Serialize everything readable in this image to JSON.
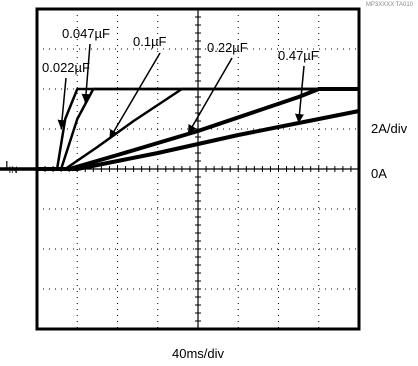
{
  "chart_data": {
    "type": "line",
    "figure_id": "MP3XXXX TA010",
    "xlabel": "40ms/div",
    "ylabel": "IN",
    "ylabel_main": "I",
    "ylabel_sub": "IN",
    "y_scale_label": "2A/div",
    "zero_label": "0A",
    "x_divisions": 8,
    "y_divisions": 8,
    "xlim": [
      0,
      320
    ],
    "ylim": [
      -8,
      8
    ],
    "x_unit": "ms",
    "y_unit": "A",
    "grid": true,
    "series": [
      {
        "name": "0.022µF",
        "points": [
          [
            0,
            0
          ],
          [
            20,
            0
          ],
          [
            28,
            2.5
          ],
          [
            40,
            4
          ],
          [
            80,
            4
          ],
          [
            200,
            4
          ],
          [
            320,
            4
          ]
        ]
      },
      {
        "name": "0.047µF",
        "points": [
          [
            0,
            0
          ],
          [
            24,
            0
          ],
          [
            40,
            2.5
          ],
          [
            56,
            4
          ],
          [
            160,
            4
          ],
          [
            320,
            4
          ]
        ]
      },
      {
        "name": "0.1µF",
        "points": [
          [
            0,
            0
          ],
          [
            28,
            0
          ],
          [
            60,
            1.1
          ],
          [
            96,
            2.4
          ],
          [
            144,
            4
          ],
          [
            320,
            4
          ]
        ]
      },
      {
        "name": "0.22µF",
        "points": [
          [
            0,
            0
          ],
          [
            32,
            0
          ],
          [
            80,
            0.7
          ],
          [
            160,
            1.9
          ],
          [
            260,
            3.6
          ],
          [
            280,
            4
          ],
          [
            320,
            4
          ]
        ]
      },
      {
        "name": "0.47µF",
        "points": [
          [
            0,
            0
          ],
          [
            40,
            0
          ],
          [
            120,
            0.8
          ],
          [
            200,
            1.7
          ],
          [
            280,
            2.5
          ],
          [
            320,
            2.9
          ]
        ]
      }
    ],
    "annotations": [
      {
        "text": "0.022µF",
        "series": "0.022µF"
      },
      {
        "text": "0.047µF",
        "series": "0.047µF"
      },
      {
        "text": "0.1µF",
        "series": "0.1µF"
      },
      {
        "text": "0.22µF",
        "series": "0.22µF"
      },
      {
        "text": "0.47µF",
        "series": "0.47µF"
      }
    ]
  }
}
